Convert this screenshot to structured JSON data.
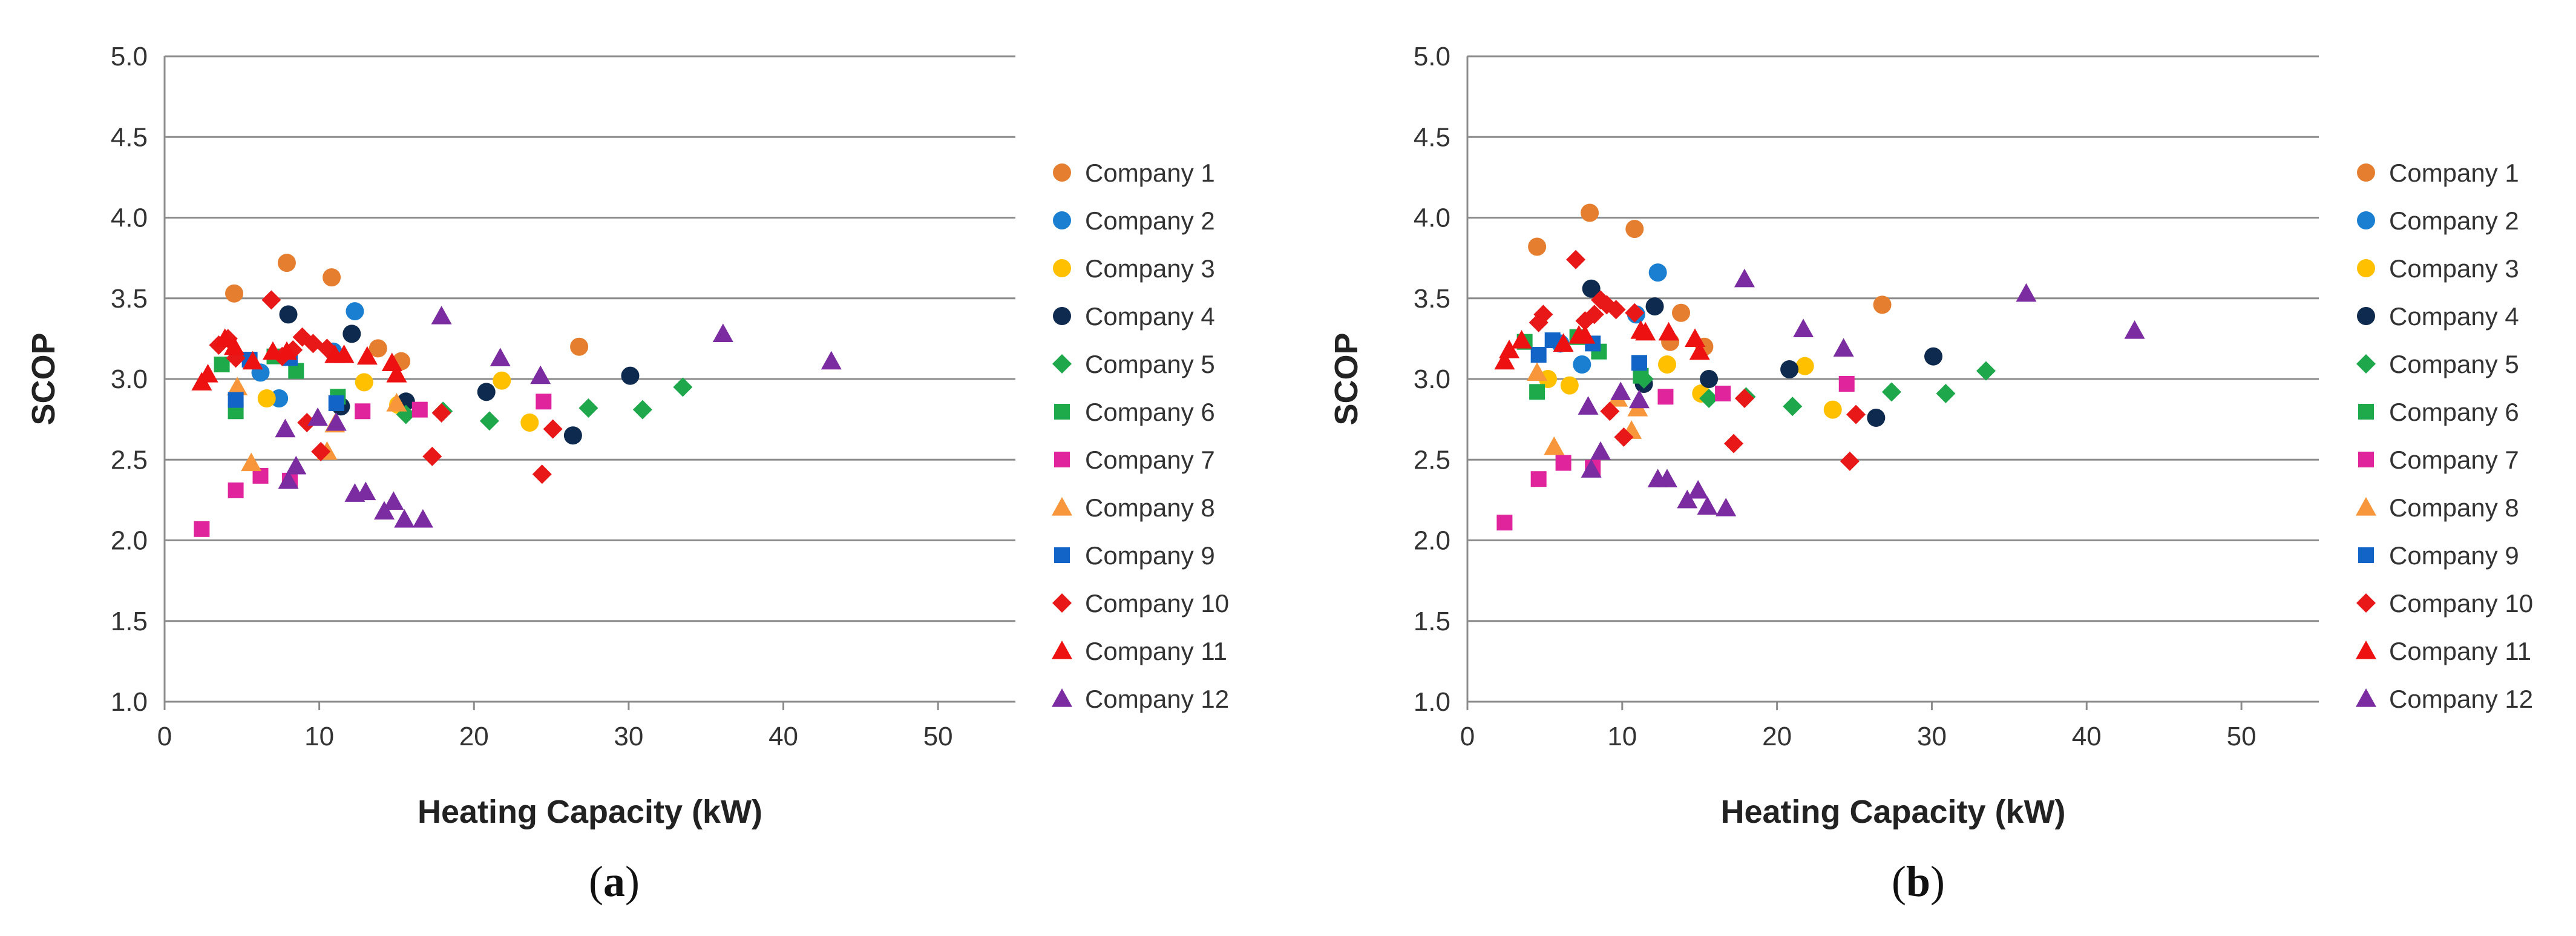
{
  "chart_data": [
    {
      "type": "scatter",
      "panel": "(a)",
      "panel_letter": "a",
      "title": "",
      "xlabel": "Heating Capacity (kW)",
      "ylabel": "SCOP",
      "xlim": [
        0,
        55
      ],
      "ylim": [
        1.0,
        5.0
      ],
      "xticks": [
        0,
        10,
        20,
        30,
        40,
        50
      ],
      "yticks": [
        1.0,
        1.5,
        2.0,
        2.5,
        3.0,
        3.5,
        4.0,
        4.5,
        5.0
      ],
      "ytick_labels": [
        "1.0",
        "1.5",
        "2.0",
        "2.5",
        "3.0",
        "3.5",
        "4.0",
        "4.5",
        "5.0"
      ],
      "grid": "horizontal",
      "legend_position": "right",
      "series": [
        {
          "name": "Company 1",
          "marker": "circle",
          "color": "#E67E30",
          "points": [
            [
              4.5,
              3.53
            ],
            [
              7.9,
              3.72
            ],
            [
              10.8,
              3.63
            ],
            [
              13.8,
              3.19
            ],
            [
              15.3,
              3.11
            ],
            [
              26.8,
              3.2
            ]
          ]
        },
        {
          "name": "Company 2",
          "marker": "circle",
          "color": "#1B7FD1",
          "points": [
            [
              6.2,
              3.04
            ],
            [
              7.4,
              2.88
            ],
            [
              10.9,
              3.17
            ],
            [
              12.3,
              3.42
            ]
          ]
        },
        {
          "name": "Company 3",
          "marker": "circle",
          "color": "#FFC000",
          "points": [
            [
              6.6,
              2.88
            ],
            [
              12.9,
              2.98
            ],
            [
              15.1,
              2.84
            ],
            [
              21.8,
              2.99
            ],
            [
              23.6,
              2.73
            ]
          ]
        },
        {
          "name": "Company 4",
          "marker": "circle",
          "color": "#0E2A4F",
          "points": [
            [
              8.0,
              3.4
            ],
            [
              11.4,
              2.83
            ],
            [
              12.1,
              3.28
            ],
            [
              15.6,
              2.86
            ],
            [
              20.8,
              2.92
            ],
            [
              26.4,
              2.65
            ],
            [
              30.1,
              3.02
            ]
          ]
        },
        {
          "name": "Company 5",
          "marker": "diamond",
          "color": "#1FA84B",
          "points": [
            [
              15.6,
              2.78
            ],
            [
              18.0,
              2.8
            ],
            [
              21.0,
              2.74
            ],
            [
              27.4,
              2.82
            ],
            [
              30.9,
              2.81
            ],
            [
              33.5,
              2.95
            ]
          ]
        },
        {
          "name": "Company 6",
          "marker": "square",
          "color": "#1EAA4B",
          "points": [
            [
              3.7,
              3.09
            ],
            [
              4.6,
              2.8
            ],
            [
              7.1,
              3.14
            ],
            [
              8.5,
              3.05
            ],
            [
              11.2,
              2.89
            ]
          ]
        },
        {
          "name": "Company 7",
          "marker": "square",
          "color": "#E0249B",
          "points": [
            [
              2.4,
              2.07
            ],
            [
              4.6,
              2.31
            ],
            [
              6.2,
              2.4
            ],
            [
              8.1,
              2.37
            ],
            [
              12.8,
              2.8
            ],
            [
              16.5,
              2.81
            ],
            [
              24.5,
              2.86
            ]
          ]
        },
        {
          "name": "Company 8",
          "marker": "triangle",
          "color": "#F7963A",
          "points": [
            [
              4.7,
              2.95
            ],
            [
              5.6,
              2.48
            ],
            [
              10.5,
              2.55
            ],
            [
              11.0,
              2.72
            ],
            [
              15.0,
              2.85
            ]
          ]
        },
        {
          "name": "Company 9",
          "marker": "square",
          "color": "#1265C6",
          "points": [
            [
              4.6,
              2.87
            ],
            [
              5.5,
              3.12
            ],
            [
              8.1,
              3.13
            ],
            [
              11.1,
              2.85
            ]
          ]
        },
        {
          "name": "Company 10",
          "marker": "diamond",
          "color": "#E81818",
          "points": [
            [
              3.5,
              3.21
            ],
            [
              4.1,
              3.25
            ],
            [
              4.6,
              3.13
            ],
            [
              6.9,
              3.49
            ],
            [
              7.6,
              3.14
            ],
            [
              8.3,
              3.18
            ],
            [
              8.9,
              3.26
            ],
            [
              9.2,
              2.73
            ],
            [
              9.6,
              3.22
            ],
            [
              10.1,
              2.55
            ],
            [
              10.5,
              3.19
            ],
            [
              17.3,
              2.52
            ],
            [
              17.9,
              2.79
            ],
            [
              24.4,
              2.41
            ],
            [
              25.1,
              2.69
            ]
          ]
        },
        {
          "name": "Company 11",
          "marker": "triangle",
          "color": "#EE1111",
          "points": [
            [
              2.4,
              2.98
            ],
            [
              2.8,
              3.03
            ],
            [
              3.9,
              3.25
            ],
            [
              4.5,
              3.2
            ],
            [
              5.7,
              3.11
            ],
            [
              7.0,
              3.17
            ],
            [
              7.9,
              3.17
            ],
            [
              11.0,
              3.15
            ],
            [
              11.6,
              3.15
            ],
            [
              13.1,
              3.14
            ],
            [
              14.7,
              3.1
            ],
            [
              15.0,
              3.03
            ]
          ]
        },
        {
          "name": "Company 12",
          "marker": "triangle",
          "color": "#7A2CA0",
          "points": [
            [
              7.8,
              2.69
            ],
            [
              8.0,
              2.37
            ],
            [
              8.5,
              2.46
            ],
            [
              9.9,
              2.76
            ],
            [
              11.1,
              2.73
            ],
            [
              12.3,
              2.29
            ],
            [
              13.0,
              2.3
            ],
            [
              14.2,
              2.18
            ],
            [
              14.8,
              2.24
            ],
            [
              15.5,
              2.13
            ],
            [
              16.7,
              2.13
            ],
            [
              17.9,
              3.39
            ],
            [
              21.7,
              3.13
            ],
            [
              24.3,
              3.02
            ],
            [
              36.1,
              3.28
            ],
            [
              43.1,
              3.11
            ]
          ]
        }
      ]
    },
    {
      "type": "scatter",
      "panel": "(b)",
      "panel_letter": "b",
      "title": "",
      "xlabel": "Heating Capacity (kW)",
      "ylabel": "SCOP",
      "xlim": [
        0,
        55
      ],
      "ylim": [
        1.0,
        5.0
      ],
      "xticks": [
        0,
        10,
        20,
        30,
        40,
        50
      ],
      "yticks": [
        1.0,
        1.5,
        2.0,
        2.5,
        3.0,
        3.5,
        4.0,
        4.5,
        5.0
      ],
      "ytick_labels": [
        "1.0",
        "1.5",
        "2.0",
        "2.5",
        "3.0",
        "3.5",
        "4.0",
        "4.5",
        "5.0"
      ],
      "grid": "horizontal",
      "legend_position": "right",
      "series": [
        {
          "name": "Company 1",
          "marker": "circle",
          "color": "#E67E30",
          "points": [
            [
              4.5,
              3.82
            ],
            [
              7.9,
              4.03
            ],
            [
              10.8,
              3.93
            ],
            [
              13.8,
              3.41
            ],
            [
              15.3,
              3.2
            ],
            [
              13.1,
              3.23
            ],
            [
              26.8,
              3.46
            ]
          ]
        },
        {
          "name": "Company 2",
          "marker": "circle",
          "color": "#1B7FD1",
          "points": [
            [
              6.0,
              3.22
            ],
            [
              7.4,
              3.09
            ],
            [
              10.9,
              3.4
            ],
            [
              12.3,
              3.66
            ]
          ]
        },
        {
          "name": "Company 3",
          "marker": "circle",
          "color": "#FFC000",
          "points": [
            [
              5.2,
              3.0
            ],
            [
              6.6,
              2.96
            ],
            [
              12.9,
              3.09
            ],
            [
              15.1,
              2.91
            ],
            [
              21.8,
              3.08
            ],
            [
              23.6,
              2.81
            ]
          ]
        },
        {
          "name": "Company 4",
          "marker": "circle",
          "color": "#0E2A4F",
          "points": [
            [
              8.0,
              3.56
            ],
            [
              11.4,
              2.97
            ],
            [
              12.1,
              3.45
            ],
            [
              15.6,
              3.0
            ],
            [
              20.8,
              3.06
            ],
            [
              26.4,
              2.76
            ],
            [
              30.1,
              3.14
            ]
          ]
        },
        {
          "name": "Company 5",
          "marker": "diamond",
          "color": "#1FA84B",
          "points": [
            [
              11.4,
              3.0
            ],
            [
              15.6,
              2.88
            ],
            [
              18.0,
              2.89
            ],
            [
              21.0,
              2.83
            ],
            [
              27.4,
              2.92
            ],
            [
              30.9,
              2.91
            ],
            [
              33.5,
              3.05
            ]
          ]
        },
        {
          "name": "Company 6",
          "marker": "square",
          "color": "#1EAA4B",
          "points": [
            [
              3.7,
              3.23
            ],
            [
              4.5,
              2.92
            ],
            [
              7.1,
              3.26
            ],
            [
              8.5,
              3.17
            ],
            [
              11.2,
              3.02
            ]
          ]
        },
        {
          "name": "Company 7",
          "marker": "square",
          "color": "#E0249B",
          "points": [
            [
              2.4,
              2.11
            ],
            [
              4.6,
              2.38
            ],
            [
              6.2,
              2.48
            ],
            [
              8.1,
              2.45
            ],
            [
              12.8,
              2.89
            ],
            [
              16.5,
              2.91
            ],
            [
              24.5,
              2.97
            ]
          ]
        },
        {
          "name": "Company 8",
          "marker": "triangle",
          "color": "#F7963A",
          "points": [
            [
              4.5,
              3.04
            ],
            [
              5.6,
              2.58
            ],
            [
              9.7,
              2.88
            ],
            [
              10.6,
              2.68
            ],
            [
              11.0,
              2.82
            ]
          ]
        },
        {
          "name": "Company 9",
          "marker": "square",
          "color": "#1265C6",
          "points": [
            [
              4.6,
              3.15
            ],
            [
              5.5,
              3.24
            ],
            [
              8.1,
              3.22
            ],
            [
              11.1,
              3.1
            ]
          ]
        },
        {
          "name": "Company 10",
          "marker": "diamond",
          "color": "#E81818",
          "points": [
            [
              4.6,
              3.35
            ],
            [
              4.9,
              3.4
            ],
            [
              7.0,
              3.74
            ],
            [
              7.6,
              3.36
            ],
            [
              8.2,
              3.4
            ],
            [
              8.6,
              3.49
            ],
            [
              9.0,
              3.46
            ],
            [
              9.2,
              2.8
            ],
            [
              9.6,
              3.43
            ],
            [
              10.1,
              2.64
            ],
            [
              10.8,
              3.41
            ],
            [
              17.2,
              2.6
            ],
            [
              17.9,
              2.88
            ],
            [
              24.7,
              2.49
            ],
            [
              25.1,
              2.78
            ]
          ]
        },
        {
          "name": "Company 11",
          "marker": "triangle",
          "color": "#EE1111",
          "points": [
            [
              2.4,
              3.11
            ],
            [
              2.7,
              3.18
            ],
            [
              3.5,
              3.24
            ],
            [
              6.2,
              3.22
            ],
            [
              7.2,
              3.27
            ],
            [
              7.6,
              3.27
            ],
            [
              11.2,
              3.3
            ],
            [
              11.5,
              3.29
            ],
            [
              13.0,
              3.29
            ],
            [
              14.7,
              3.25
            ],
            [
              15.0,
              3.17
            ]
          ]
        },
        {
          "name": "Company 12",
          "marker": "triangle",
          "color": "#7A2CA0",
          "points": [
            [
              7.8,
              2.83
            ],
            [
              8.0,
              2.44
            ],
            [
              8.6,
              2.55
            ],
            [
              9.9,
              2.92
            ],
            [
              11.1,
              2.87
            ],
            [
              12.3,
              2.38
            ],
            [
              12.9,
              2.38
            ],
            [
              14.2,
              2.25
            ],
            [
              14.9,
              2.31
            ],
            [
              15.5,
              2.21
            ],
            [
              16.7,
              2.2
            ],
            [
              17.9,
              3.62
            ],
            [
              21.7,
              3.31
            ],
            [
              24.3,
              3.19
            ],
            [
              36.1,
              3.53
            ],
            [
              43.1,
              3.3
            ]
          ]
        }
      ]
    }
  ]
}
